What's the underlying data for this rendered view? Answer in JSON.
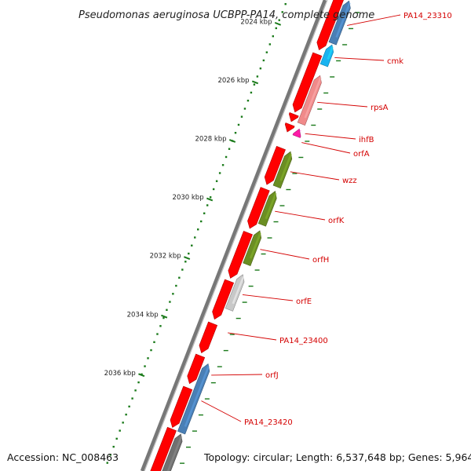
{
  "title": "Pseudomonas aeruginosa UCBPP-PA14, complete genome",
  "footer": {
    "accession": "Accession: NC_008463",
    "topology": "Topology: circular; Length: 6,537,648 bp; Genes: 5,964"
  },
  "colors": {
    "backbone": "#7a7a7a",
    "cds": "#ff0000",
    "gene_label": "#d40000",
    "ticks": "#1a7a1a"
  },
  "ticks": [
    {
      "label": "2024 kbp"
    },
    {
      "label": "2026 kbp"
    },
    {
      "label": "2028 kbp"
    },
    {
      "label": "2030 kbp"
    },
    {
      "label": "2032 kbp"
    },
    {
      "label": "2034 kbp"
    },
    {
      "label": "2036 kbp"
    }
  ],
  "genes": [
    {
      "label": "PA14_23310",
      "color": "#4a7fb5"
    },
    {
      "label": "cmk",
      "color": "#19b3f0"
    },
    {
      "label": "rpsA",
      "color": "#f08a8a"
    },
    {
      "label": "ihfB",
      "color": "#ff1aa8"
    },
    {
      "label": "orfA",
      "color": "#ff0000"
    },
    {
      "label": "wzz",
      "color": "#6b8e23"
    },
    {
      "label": "orfK",
      "color": "#6b8e23"
    },
    {
      "label": "orfH",
      "color": "#6b8e23"
    },
    {
      "label": "orfE",
      "color": "#c8c8c8"
    },
    {
      "label": "PA14_23400",
      "color": "#ff0000"
    },
    {
      "label": "orfJ",
      "color": "#ff0000"
    },
    {
      "label": "PA14_23420",
      "color": "#4a7fb5"
    }
  ]
}
